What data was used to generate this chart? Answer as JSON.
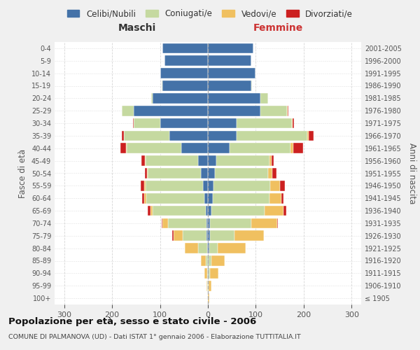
{
  "age_groups": [
    "100+",
    "95-99",
    "90-94",
    "85-89",
    "80-84",
    "75-79",
    "70-74",
    "65-69",
    "60-64",
    "55-59",
    "50-54",
    "45-49",
    "40-44",
    "35-39",
    "30-34",
    "25-29",
    "20-24",
    "15-19",
    "10-14",
    "5-9",
    "0-4"
  ],
  "birth_years": [
    "≤ 1905",
    "1906-1910",
    "1911-1915",
    "1916-1920",
    "1921-1925",
    "1926-1930",
    "1931-1935",
    "1936-1940",
    "1941-1945",
    "1946-1950",
    "1951-1955",
    "1956-1960",
    "1961-1965",
    "1966-1970",
    "1971-1975",
    "1976-1980",
    "1981-1985",
    "1986-1990",
    "1991-1995",
    "1996-2000",
    "2001-2005"
  ],
  "colors": {
    "celibi": "#4472a8",
    "coniugati": "#c5d9a0",
    "vedovi": "#f0c060",
    "divorziati": "#cc2020"
  },
  "maschi": {
    "celibi": [
      0,
      0,
      0,
      0,
      2,
      3,
      3,
      5,
      8,
      10,
      15,
      20,
      55,
      80,
      100,
      155,
      115,
      95,
      100,
      90,
      95
    ],
    "coniugati": [
      0,
      1,
      2,
      5,
      18,
      50,
      80,
      110,
      120,
      120,
      110,
      110,
      115,
      95,
      55,
      25,
      3,
      1,
      0,
      0,
      0
    ],
    "vedovi": [
      0,
      2,
      5,
      10,
      28,
      18,
      12,
      5,
      5,
      3,
      2,
      1,
      1,
      0,
      0,
      0,
      0,
      0,
      0,
      0,
      0
    ],
    "divorziati": [
      0,
      0,
      0,
      0,
      0,
      3,
      2,
      5,
      5,
      8,
      5,
      8,
      12,
      5,
      2,
      0,
      0,
      0,
      0,
      0,
      0
    ]
  },
  "femmine": {
    "celibi": [
      0,
      0,
      1,
      2,
      3,
      5,
      5,
      8,
      10,
      12,
      15,
      18,
      45,
      60,
      60,
      110,
      110,
      90,
      100,
      90,
      95
    ],
    "coniugati": [
      0,
      1,
      3,
      5,
      18,
      50,
      85,
      110,
      118,
      118,
      110,
      110,
      128,
      148,
      115,
      55,
      15,
      2,
      0,
      0,
      0
    ],
    "vedovi": [
      3,
      6,
      18,
      28,
      58,
      62,
      55,
      40,
      25,
      20,
      10,
      5,
      5,
      2,
      2,
      1,
      0,
      0,
      0,
      0,
      0
    ],
    "divorziati": [
      0,
      0,
      0,
      0,
      0,
      0,
      1,
      5,
      5,
      10,
      8,
      5,
      20,
      10,
      3,
      2,
      1,
      0,
      0,
      0,
      0
    ]
  },
  "xlim": 320,
  "title": "Popolazione per età, sesso e stato civile - 2006",
  "subtitle": "COMUNE DI PALMANOVA (UD) - Dati ISTAT 1° gennaio 2006 - Elaborazione TUTTITALIA.IT",
  "ylabel_left": "Fasce di età",
  "ylabel_right": "Anni di nascita",
  "xlabel_left": "Maschi",
  "xlabel_right": "Femmine",
  "legend_labels": [
    "Celibi/Nubili",
    "Coniugati/e",
    "Vedovi/e",
    "Divorziati/e"
  ],
  "bg_color": "#f0f0f0",
  "plot_bg_color": "#ffffff",
  "grid_color": "#cccccc"
}
